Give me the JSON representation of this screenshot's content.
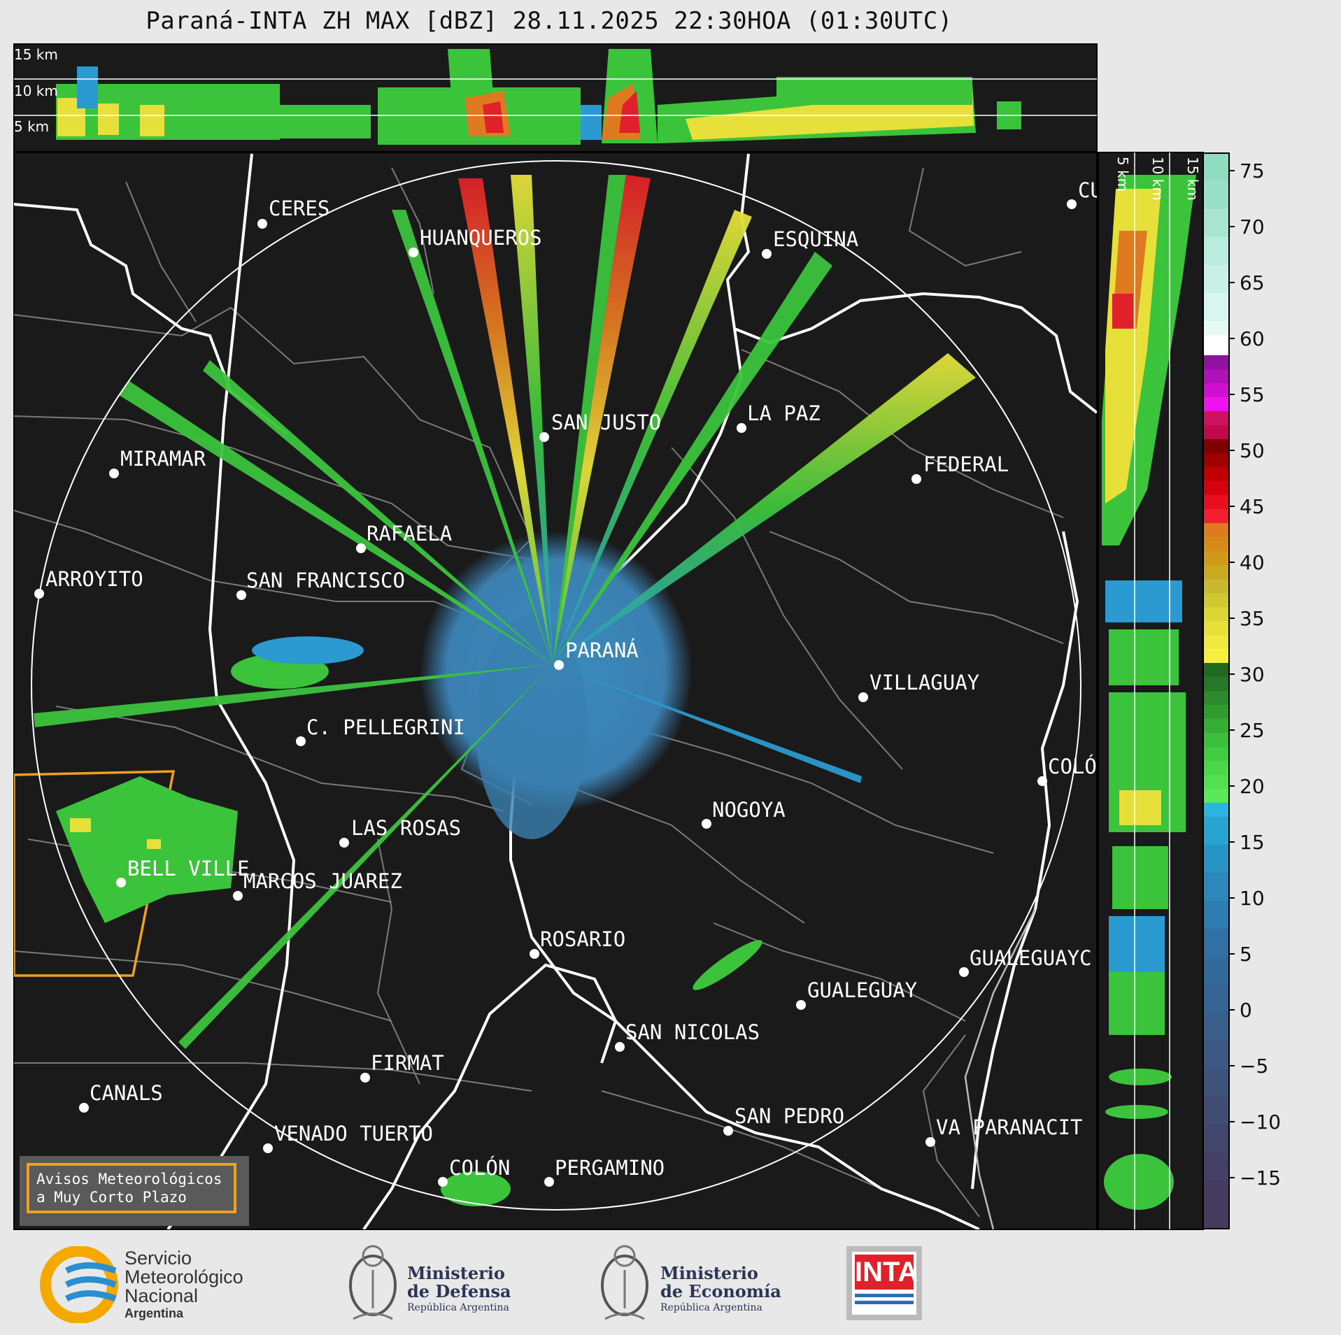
{
  "title": "Paraná-INTA ZH MAX [dBZ] 28.11.2025 22:30HOA (01:30UTC)",
  "height_labels": {
    "h15": "15 km",
    "h10": "10 km",
    "h5": "5 km"
  },
  "side_height_labels": {
    "h5": "5 km",
    "h10": "10 km",
    "h15": "15 km"
  },
  "colorbar": {
    "ticks": [
      "75",
      "70",
      "65",
      "60",
      "55",
      "50",
      "45",
      "40",
      "35",
      "30",
      "25",
      "20",
      "15",
      "10",
      "5",
      "0",
      "−5",
      "−10",
      "−15"
    ]
  },
  "cities": {
    "ceres": "CERES",
    "huanqueros": "HUANQUEROS",
    "esquina": "ESQUINA",
    "cu": "CU",
    "san_justo": "SAN JUSTO",
    "la_paz": "LA PAZ",
    "miramar": "MIRAMAR",
    "federal": "FEDERAL",
    "rafaela": "RAFAELA",
    "arroyito": "ARROYITO",
    "san_francisco": "SAN FRANCISCO",
    "parana": "PARANÁ",
    "villaguay": "VILLAGUAY",
    "c_pellegrini": "C. PELLEGRINI",
    "colon_er": "COLÓ",
    "nogoya": "NOGOYA",
    "las_rosas": "LAS ROSAS",
    "bell_ville": "BELL VILLE",
    "marcos_juarez": "MARCOS JUAREZ",
    "rosario": "ROSARIO",
    "gualeguayc": "GUALEGUAYC",
    "gualeguay": "GUALEGUAY",
    "san_nicolas": "SAN NICOLAS",
    "firmat": "FIRMAT",
    "canals": "CANALS",
    "san_pedro": "SAN PEDRO",
    "venado_tuerto": "VENADO TUERTO",
    "va_paranacit": "VA PARANACIT",
    "colon": "COLÓN",
    "pergamino": "PERGAMINO"
  },
  "warning": {
    "line1": "Avisos Meteorológicos",
    "line2": "a Muy Corto Plazo"
  },
  "logos": {
    "smn": {
      "l1": "Servicio",
      "l2": "Meteorológico",
      "l3": "Nacional",
      "l4": "Argentina"
    },
    "defensa": {
      "l1": "Ministerio",
      "l2": "de Defensa",
      "l3": "República Argentina"
    },
    "economia": {
      "l1": "Ministerio",
      "l2": "de Economía",
      "l3": "República Argentina"
    },
    "inta": {
      "text": "INTA"
    }
  },
  "colors": {
    "background": "#1a1a1a",
    "accent_warning": "#f0a020"
  }
}
